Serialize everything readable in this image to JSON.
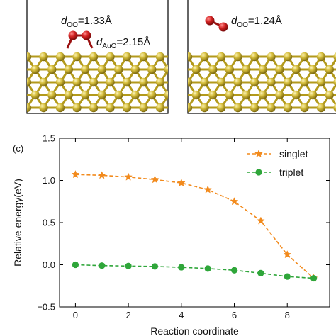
{
  "panels": {
    "left_label": "",
    "right_label": "",
    "left": {
      "d_oo_symbol": "d",
      "d_oo_sub": "OO",
      "d_oo_value": "=1.33Å",
      "d_auo_symbol": "d",
      "d_auo_sub": "AuO",
      "d_auo_value": "=2.15Å"
    },
    "right": {
      "d_oo_symbol": "d",
      "d_oo_sub": "OO",
      "d_oo_value": "=1.24Å"
    },
    "colors": {
      "gold": "#c9b133",
      "gold_light": "#efe08a",
      "gold_dark": "#7d6a10",
      "oxygen": "#d02020",
      "oxygen_dark": "#7a0a0a"
    }
  },
  "chart_data": {
    "panel_label": "(c)",
    "type": "line",
    "xlabel": "Reaction coordinate",
    "ylabel": "Relative energy(eV)",
    "xlim": [
      -0.6,
      9.6
    ],
    "ylim": [
      -0.5,
      1.5
    ],
    "xticks": [
      0,
      2,
      4,
      6,
      8
    ],
    "yticks": [
      -0.5,
      0.0,
      0.5,
      1.0,
      1.5
    ],
    "ytick_labels": [
      "−0.5",
      "0.0",
      "0.5",
      "1.0",
      "1.5"
    ],
    "legend_position": "top-right",
    "grid": false,
    "series": [
      {
        "name": "singlet",
        "color": "#f28a1c",
        "marker": "star",
        "line_style": "dashed",
        "x": [
          0,
          1,
          2,
          3,
          4,
          5,
          6,
          7,
          8,
          9
        ],
        "y": [
          1.07,
          1.06,
          1.04,
          1.01,
          0.97,
          0.89,
          0.75,
          0.52,
          0.12,
          -0.16
        ]
      },
      {
        "name": "triplet",
        "color": "#2fa63a",
        "marker": "circle",
        "line_style": "dashed",
        "x": [
          0,
          1,
          2,
          3,
          4,
          5,
          6,
          7,
          8,
          9
        ],
        "y": [
          0.0,
          -0.01,
          -0.015,
          -0.02,
          -0.03,
          -0.045,
          -0.065,
          -0.1,
          -0.14,
          -0.16
        ]
      }
    ]
  }
}
